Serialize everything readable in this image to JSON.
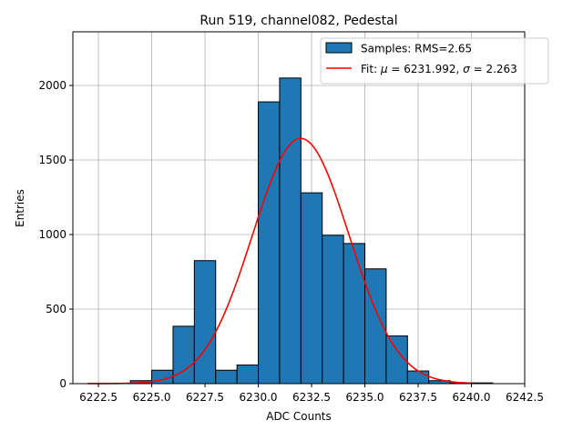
{
  "chart_data": {
    "type": "bar",
    "title": "Run 519, channel082, Pedestal",
    "xlabel": "ADC Counts",
    "ylabel": "Entries",
    "xlim": [
      6221.3,
      6242.5
    ],
    "ylim": [
      0,
      2360
    ],
    "grid": true,
    "legend_position": "top-right",
    "x_ticks": [
      6222.5,
      6225.0,
      6227.5,
      6230.0,
      6232.5,
      6235.0,
      6237.5,
      6240.0,
      6242.5
    ],
    "x_tick_labels": [
      "6222.5",
      "6225.0",
      "6227.5",
      "6230.0",
      "6232.5",
      "6235.0",
      "6237.5",
      "6240.0",
      "6242.5"
    ],
    "y_ticks": [
      0,
      500,
      1000,
      1500,
      2000
    ],
    "y_tick_labels": [
      "0",
      "500",
      "1000",
      "1500",
      "2000"
    ],
    "bin_edges": [
      6224,
      6225,
      6226,
      6227,
      6228,
      6229,
      6230,
      6231,
      6232,
      6233,
      6234,
      6235,
      6236,
      6237,
      6238,
      6239,
      6240,
      6241
    ],
    "counts": [
      20,
      90,
      385,
      825,
      90,
      125,
      1890,
      2050,
      1280,
      995,
      940,
      770,
      320,
      85,
      20,
      5,
      5
    ],
    "histogram_label": "Samples: RMS=2.65",
    "fit": {
      "label_prefix": "Fit: ",
      "label_mu": "μ",
      "label_mu_value": " = 6231.992, ",
      "label_sigma": "σ",
      "label_sigma_value": " = 2.263",
      "mu": 6231.992,
      "sigma": 2.263,
      "amplitude": 1645,
      "x_range": [
        6222,
        6240
      ]
    },
    "colors": {
      "bars": "#1f77b4",
      "bar_edge": "#000000",
      "fit": "#ff0000",
      "grid": "#b0b0b0"
    }
  }
}
